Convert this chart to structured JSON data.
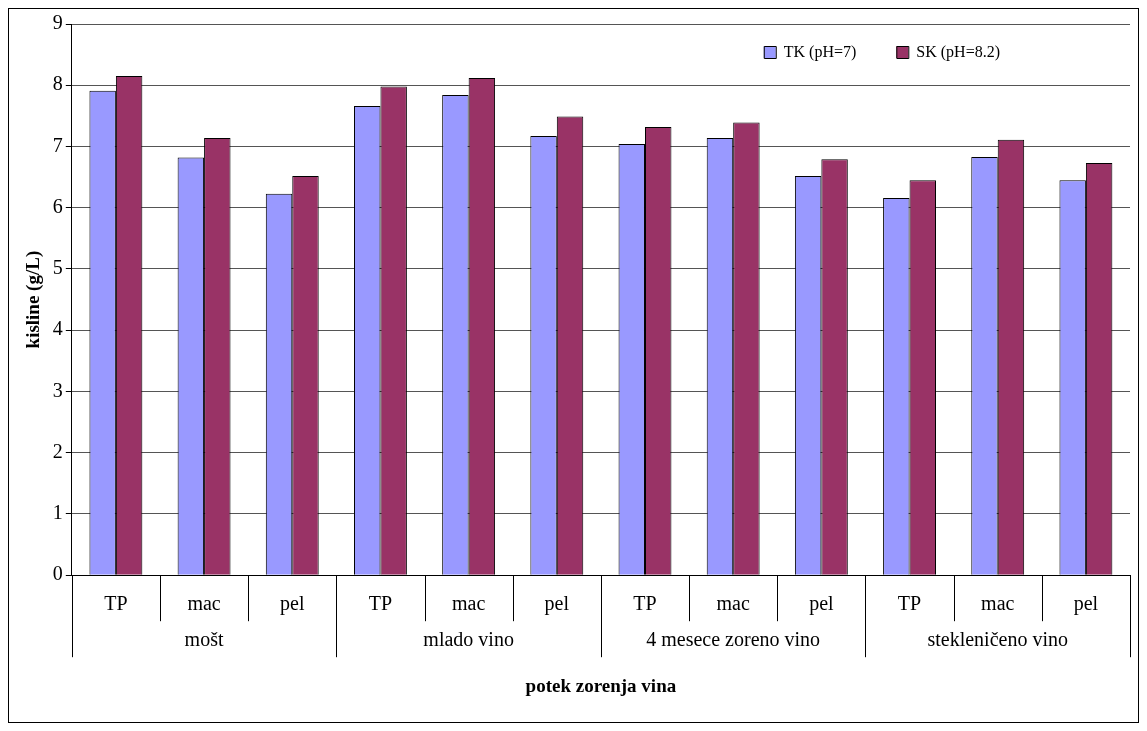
{
  "chart_data": {
    "type": "bar",
    "xlabel": "potek zorenja vina",
    "ylabel": "kisline (g/L)",
    "categories": [
      "TP",
      "mac",
      "pel",
      "TP",
      "mac",
      "pel",
      "TP",
      "mac",
      "pel",
      "TP",
      "mac",
      "pel"
    ],
    "annotations": [
      "mošt",
      "mlado vino",
      "4 mesece zoreno vino",
      "stekleničeno vino"
    ],
    "series": [
      {
        "name": "TK (pH=7)",
        "color": "#9999ff",
        "values": [
          7.91,
          6.82,
          6.23,
          7.66,
          7.84,
          7.17,
          7.04,
          7.14,
          6.52,
          6.16,
          6.83,
          6.45
        ]
      },
      {
        "name": "SK (pH=8.2)",
        "color": "#993366",
        "values": [
          8.15,
          7.14,
          6.52,
          7.98,
          8.12,
          7.49,
          7.32,
          7.39,
          6.79,
          6.45,
          7.11,
          6.73
        ]
      }
    ],
    "ylim": [
      0,
      9
    ],
    "yticks": [
      0,
      1,
      2,
      3,
      4,
      5,
      6,
      7,
      8,
      9
    ],
    "grid": "y",
    "legend": "top right"
  }
}
